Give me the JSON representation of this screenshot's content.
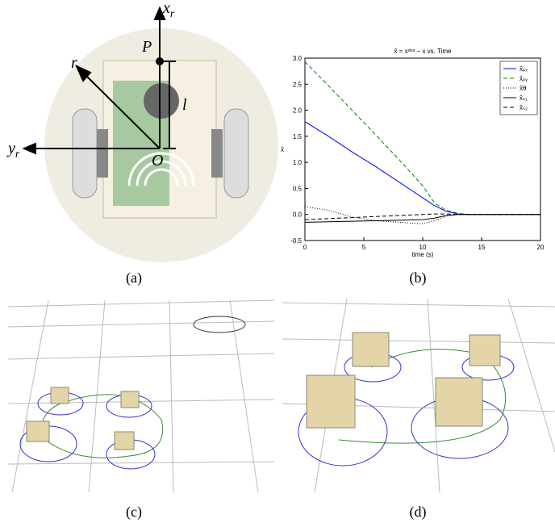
{
  "diagram": {
    "labels": [
      {
        "base": "x",
        "sub": "r"
      },
      {
        "base": "P",
        "sub": ""
      },
      {
        "base": "r",
        "sub": ""
      },
      {
        "base": "l",
        "sub": ""
      },
      {
        "base": "y",
        "sub": "r"
      },
      {
        "base": "O",
        "sub": ""
      }
    ]
  },
  "captions": [
    "(a)",
    "(b)",
    "(c)",
    "(d)"
  ],
  "chart_data": {
    "type": "line",
    "title": "x̂ = xᵈᵉˢ − x vs. Time",
    "x_label": "time (s)",
    "y_label": "x̂",
    "x": [
      0,
      2,
      4,
      6,
      8,
      10,
      11,
      12,
      13,
      14,
      15,
      20
    ],
    "series": [
      {
        "name": "x̂ₚₓ",
        "color": "#0000ff",
        "style": "solid",
        "values": [
          1.78,
          1.5,
          1.2,
          0.92,
          0.62,
          0.32,
          0.17,
          0.06,
          0.01,
          0,
          0,
          0
        ]
      },
      {
        "name": "x̂ₚᵧ",
        "color": "#008000",
        "style": "dashed",
        "values": [
          2.93,
          2.47,
          2.0,
          1.53,
          1.05,
          0.55,
          0.22,
          0.08,
          0.02,
          0,
          0,
          0
        ]
      },
      {
        "name": "x̂θ",
        "color": "#000000",
        "style": "dotted",
        "values": [
          0.15,
          0.08,
          -0.05,
          -0.12,
          -0.15,
          -0.18,
          -0.12,
          -0.03,
          0,
          0,
          0,
          0
        ]
      },
      {
        "name": "x̂ₛ₁",
        "color": "#000000",
        "style": "solid",
        "values": [
          -0.15,
          -0.14,
          -0.13,
          -0.12,
          -0.11,
          -0.1,
          -0.07,
          -0.02,
          0,
          0,
          0,
          0
        ]
      },
      {
        "name": "x̂ₛ₂",
        "color": "#000000",
        "style": "dashed",
        "values": [
          -0.1,
          -0.08,
          -0.06,
          -0.04,
          -0.02,
          0,
          0.01,
          0.01,
          0,
          0,
          0,
          0
        ]
      }
    ],
    "xlim": [
      0,
      20
    ],
    "xticks": [
      0,
      5,
      10,
      15,
      20
    ],
    "ylim": [
      -0.5,
      3.0
    ],
    "yticks": [
      -0.5,
      {
        "value": 0,
        "label": "0.0"
      },
      0.5,
      {
        "value": 1,
        "label": "1.0"
      },
      1.5,
      {
        "value": 2,
        "label": "2.0"
      },
      2.5,
      {
        "value": 3,
        "label": "3.0"
      }
    ],
    "legend": "upper right"
  }
}
